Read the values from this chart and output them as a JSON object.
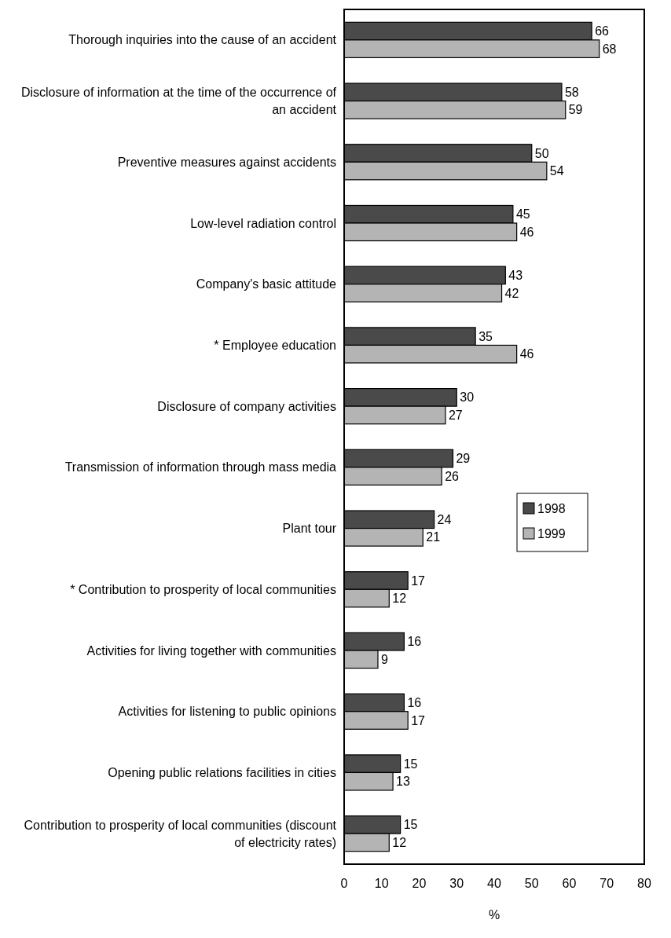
{
  "chart_data": {
    "type": "bar",
    "orientation": "horizontal",
    "xlabel": "%",
    "categories": [
      "Thorough inquiries into the cause of an accident",
      "Disclosure of information at the time of the occurrence of an accident",
      "Preventive measures against accidents",
      "Low-level radiation control",
      "Company's basic attitude",
      "* Employee education",
      "Disclosure of company activities",
      "Transmission of information through mass media",
      "Plant tour",
      "* Contribution to prosperity of local communities",
      "Activities for living together with communities",
      "Activities for listening to public opinions",
      "Opening public relations facilities in cities",
      "Contribution to prosperity of local communities (discount of electricity rates)"
    ],
    "series": [
      {
        "name": "1998",
        "color": "#4a4a4a",
        "values": [
          66,
          58,
          50,
          45,
          43,
          35,
          30,
          29,
          24,
          17,
          16,
          16,
          15,
          15
        ]
      },
      {
        "name": "1999",
        "color": "#b4b4b4",
        "values": [
          68,
          59,
          54,
          46,
          42,
          46,
          27,
          26,
          21,
          12,
          9,
          17,
          13,
          12
        ]
      }
    ],
    "xlim": [
      0,
      80
    ],
    "xticks": [
      0,
      10,
      20,
      30,
      40,
      50,
      60,
      70,
      80
    ],
    "data_labels": true,
    "legend": "right",
    "grid": false
  }
}
